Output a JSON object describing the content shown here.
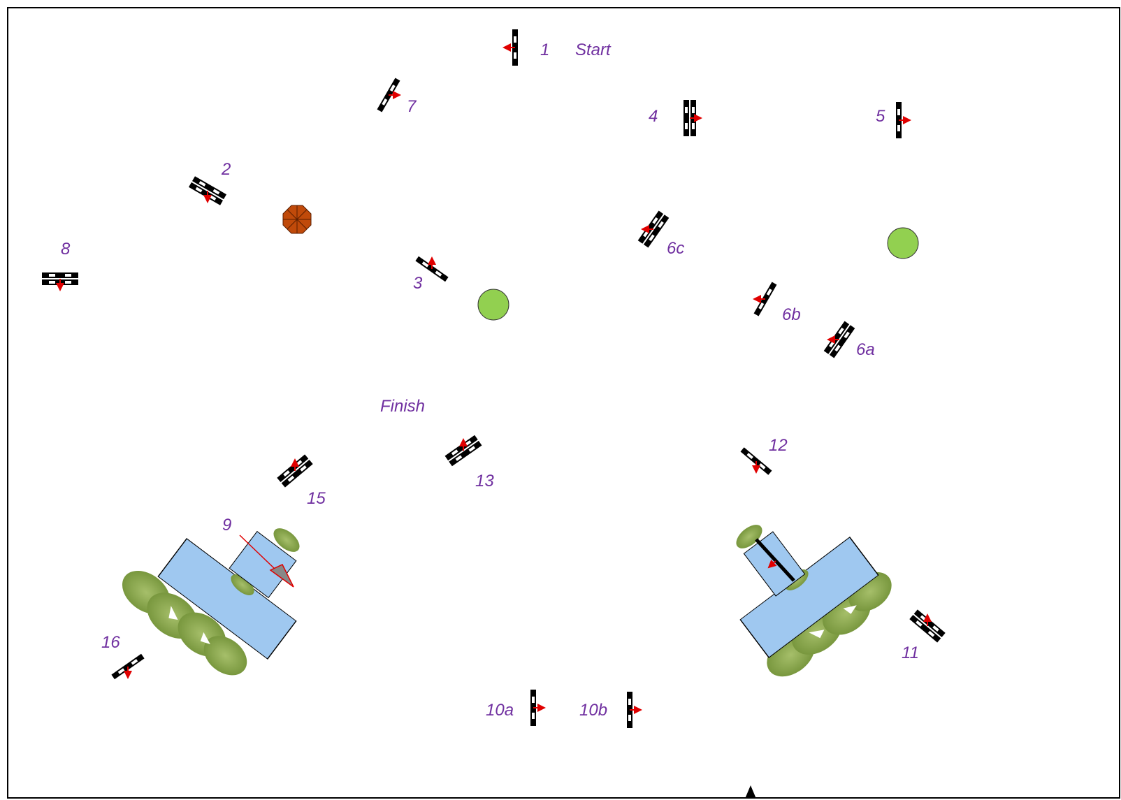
{
  "course": {
    "start_label": "Start",
    "finish_label": "Finish",
    "colors": {
      "label": "#7030a0",
      "arrow": "#e00000",
      "water": "#9fc8f0",
      "hedge": "#7a9a3c",
      "tree": "#92d050",
      "umbrella": "#c04a0a"
    },
    "obstacles": [
      {
        "id": "1",
        "label": "1",
        "type": "vertical",
        "direction": "left"
      },
      {
        "id": "2",
        "label": "2",
        "type": "oxer",
        "direction": "down"
      },
      {
        "id": "3",
        "label": "3",
        "type": "vertical",
        "direction": "up"
      },
      {
        "id": "4",
        "label": "4",
        "type": "oxer",
        "direction": "right"
      },
      {
        "id": "5",
        "label": "5",
        "type": "vertical",
        "direction": "right"
      },
      {
        "id": "6a",
        "label": "6a",
        "type": "oxer",
        "direction": "left"
      },
      {
        "id": "6b",
        "label": "6b",
        "type": "vertical",
        "direction": "left"
      },
      {
        "id": "6c",
        "label": "6c",
        "type": "oxer",
        "direction": "left"
      },
      {
        "id": "7",
        "label": "7",
        "type": "vertical",
        "direction": "right"
      },
      {
        "id": "8",
        "label": "8",
        "type": "oxer",
        "direction": "down"
      },
      {
        "id": "9",
        "label": "9",
        "type": "water",
        "direction": "down-right"
      },
      {
        "id": "10a",
        "label": "10a",
        "type": "vertical",
        "direction": "right"
      },
      {
        "id": "10b",
        "label": "10b",
        "type": "vertical",
        "direction": "right"
      },
      {
        "id": "11",
        "label": "11",
        "type": "oxer",
        "direction": "up"
      },
      {
        "id": "12",
        "label": "12",
        "type": "vertical",
        "direction": "down"
      },
      {
        "id": "13",
        "label": "13",
        "type": "oxer",
        "direction": "up"
      },
      {
        "id": "15",
        "label": "15",
        "type": "oxer",
        "direction": "up"
      },
      {
        "id": "16",
        "label": "16",
        "type": "vertical",
        "direction": "down"
      }
    ]
  }
}
